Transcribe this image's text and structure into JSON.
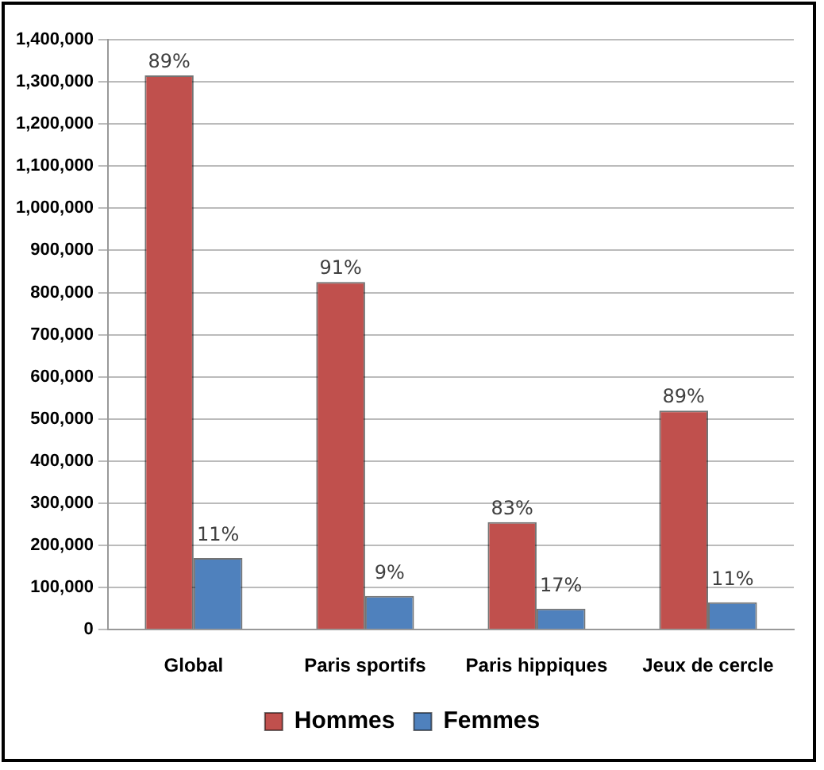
{
  "chart_data": {
    "type": "bar",
    "categories": [
      "Global",
      "Paris sportifs",
      "Paris hippiques",
      "Jeux de cercle"
    ],
    "series": [
      {
        "name": "Hommes",
        "color": "#c0504d",
        "values": [
          1315000,
          825000,
          255000,
          520000
        ]
      },
      {
        "name": "Femmes",
        "color": "#4f81bd",
        "values": [
          170000,
          80000,
          50000,
          65000
        ]
      }
    ],
    "annotations": [
      {
        "text": "89%",
        "x": "Global",
        "y": 1315000
      },
      {
        "text": "91%",
        "x": "Paris sportifs",
        "y": 825000
      },
      {
        "text": "83%",
        "x": "Paris hippiques",
        "y": 255000
      },
      {
        "text": "89%",
        "x": "Jeux de cercle",
        "y": 520000
      },
      {
        "text": "11%",
        "x": "Global",
        "y": 170000
      },
      {
        "text": "9%",
        "x": "Paris sportifs",
        "y": 80000
      },
      {
        "text": "17%",
        "x": "Paris hippiques",
        "y": 50000
      },
      {
        "text": "11%",
        "x": "Jeux de cercle",
        "y": 65000
      }
    ],
    "ylim": [
      0,
      1400000
    ],
    "yticks": [
      0,
      {
        "value": 100000,
        "label": "100,000"
      },
      {
        "value": 200000,
        "label": "200,000"
      },
      {
        "value": 300000,
        "label": "300,000"
      },
      {
        "value": 400000,
        "label": "400,000"
      },
      {
        "value": 500000,
        "label": "500,000"
      },
      {
        "value": 600000,
        "label": "600,000"
      },
      {
        "value": 700000,
        "label": "700,000"
      },
      {
        "value": 800000,
        "label": "800,000"
      },
      {
        "value": 900000,
        "label": "900,000"
      },
      {
        "value": 1000000,
        "label": "1,000,000"
      },
      {
        "value": 1100000,
        "label": "1,100,000"
      },
      {
        "value": 1200000,
        "label": "1,200,000"
      },
      {
        "value": 1300000,
        "label": "1,300,000"
      },
      {
        "value": 1400000,
        "label": "1,400,000"
      }
    ],
    "grid": "y",
    "legend": "bottom"
  }
}
